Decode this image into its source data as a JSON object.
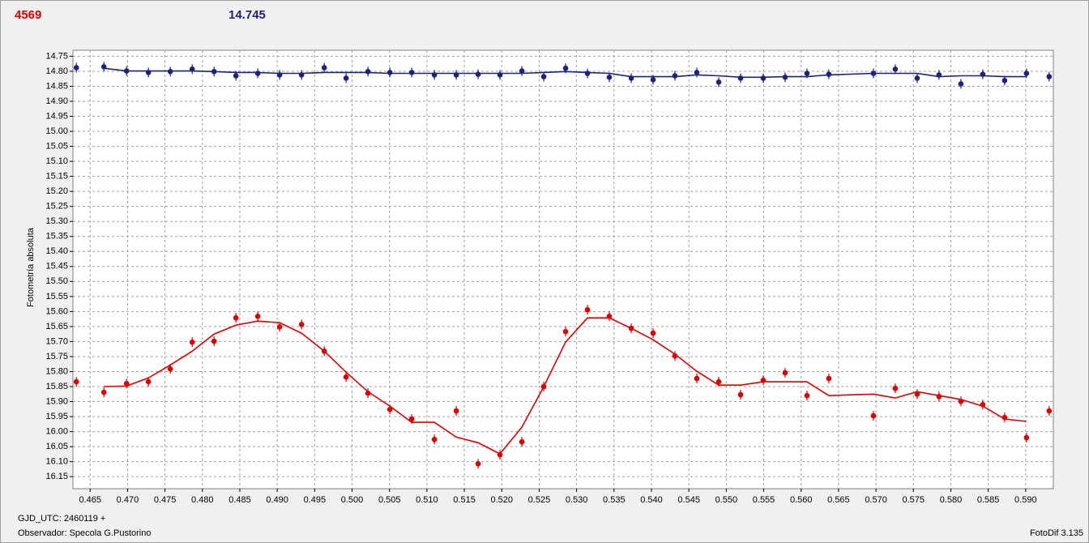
{
  "chart_data": {
    "type": "scatter",
    "header_left": "4569",
    "header_left_color": "#e00000",
    "header_right": "14.745",
    "header_right_color": "#1a237e",
    "y_label": "Fotometría absoluta",
    "footer_1": "GJD_UTC: 2460119 +",
    "footer_2": "Observador: Specola G.Pustorino",
    "footer_right": "FotoDif 3.135",
    "grid": true,
    "xlim": [
      0.4627,
      0.5937
    ],
    "ylim": [
      16.19,
      14.73
    ],
    "xticks": [
      {
        "value": 0.465,
        "label": "0.465"
      },
      {
        "value": 0.47,
        "label": "0.470"
      },
      {
        "value": 0.475,
        "label": "0.475"
      },
      {
        "value": 0.48,
        "label": "0.480"
      },
      {
        "value": 0.485,
        "label": "0.485"
      },
      {
        "value": 0.49,
        "label": "0.490"
      },
      {
        "value": 0.495,
        "label": "0.495"
      },
      {
        "value": 0.5,
        "label": "0.500"
      },
      {
        "value": 0.505,
        "label": "0.505"
      },
      {
        "value": 0.51,
        "label": "0.510"
      },
      {
        "value": 0.515,
        "label": "0.515"
      },
      {
        "value": 0.52,
        "label": "0.520"
      },
      {
        "value": 0.525,
        "label": "0.525"
      },
      {
        "value": 0.53,
        "label": "0.530"
      },
      {
        "value": 0.535,
        "label": "0.535"
      },
      {
        "value": 0.54,
        "label": "0.540"
      },
      {
        "value": 0.545,
        "label": "0.545"
      },
      {
        "value": 0.55,
        "label": "0.550"
      },
      {
        "value": 0.555,
        "label": "0.555"
      },
      {
        "value": 0.56,
        "label": "0.560"
      },
      {
        "value": 0.565,
        "label": "0.565"
      },
      {
        "value": 0.57,
        "label": "0.570"
      },
      {
        "value": 0.575,
        "label": "0.575"
      },
      {
        "value": 0.58,
        "label": "0.580"
      },
      {
        "value": 0.585,
        "label": "0.585"
      },
      {
        "value": 0.59,
        "label": "0.590"
      }
    ],
    "yticks": [
      {
        "value": 14.75,
        "label": "14.75"
      },
      {
        "value": 14.8,
        "label": "14.80"
      },
      {
        "value": 14.85,
        "label": "14.85"
      },
      {
        "value": 14.9,
        "label": "14.90"
      },
      {
        "value": 14.95,
        "label": "14.95"
      },
      {
        "value": 15.0,
        "label": "15.00"
      },
      {
        "value": 15.05,
        "label": "15.05"
      },
      {
        "value": 15.1,
        "label": "15.10"
      },
      {
        "value": 15.15,
        "label": "15.15"
      },
      {
        "value": 15.2,
        "label": "15.20"
      },
      {
        "value": 15.25,
        "label": "15.25"
      },
      {
        "value": 15.3,
        "label": "15.30"
      },
      {
        "value": 15.35,
        "label": "15.35"
      },
      {
        "value": 15.4,
        "label": "15.40"
      },
      {
        "value": 15.45,
        "label": "15.45"
      },
      {
        "value": 15.5,
        "label": "15.50"
      },
      {
        "value": 15.55,
        "label": "15.55"
      },
      {
        "value": 15.6,
        "label": "15.60"
      },
      {
        "value": 15.65,
        "label": "15.65"
      },
      {
        "value": 15.7,
        "label": "15.70"
      },
      {
        "value": 15.75,
        "label": "15.75"
      },
      {
        "value": 15.8,
        "label": "15.80"
      },
      {
        "value": 15.85,
        "label": "15.85"
      },
      {
        "value": 15.9,
        "label": "15.90"
      },
      {
        "value": 15.95,
        "label": "15.95"
      },
      {
        "value": 16.0,
        "label": "16.00"
      },
      {
        "value": 16.05,
        "label": "16.05"
      },
      {
        "value": 16.1,
        "label": "16.10"
      },
      {
        "value": 16.15,
        "label": "16.15"
      }
    ],
    "x": [
      0.46316,
      0.46684,
      0.46987,
      0.47279,
      0.47571,
      0.47864,
      0.48156,
      0.48448,
      0.4874,
      0.49032,
      0.49325,
      0.49628,
      0.4992,
      0.50212,
      0.50505,
      0.50797,
      0.511,
      0.51392,
      0.51684,
      0.51976,
      0.52269,
      0.52561,
      0.52853,
      0.53145,
      0.53437,
      0.5373,
      0.54022,
      0.54314,
      0.54606,
      0.54899,
      0.55191,
      0.55494,
      0.55786,
      0.56078,
      0.5637,
      0.56966,
      0.57258,
      0.5755,
      0.57842,
      0.58135,
      0.58427,
      0.58719,
      0.59011,
      0.59314
    ],
    "series": [
      {
        "style": "points",
        "color": "#1a237e",
        "values": [
          14.788,
          14.785,
          14.799,
          14.804,
          14.801,
          14.793,
          14.801,
          14.815,
          14.807,
          14.812,
          14.812,
          14.788,
          14.823,
          14.801,
          14.804,
          14.804,
          14.812,
          14.812,
          14.81,
          14.812,
          14.799,
          14.818,
          14.79,
          14.807,
          14.82,
          14.823,
          14.828,
          14.815,
          14.804,
          14.836,
          14.823,
          14.823,
          14.82,
          14.807,
          14.81,
          14.807,
          14.793,
          14.823,
          14.812,
          14.842,
          14.81,
          14.831,
          14.807,
          14.818
        ]
      },
      {
        "style": "line",
        "color": "#1a237e",
        "values": [
          null,
          14.79,
          14.799,
          14.799,
          14.799,
          14.799,
          14.801,
          14.804,
          14.804,
          14.807,
          14.807,
          14.804,
          14.804,
          14.804,
          14.807,
          14.807,
          14.807,
          14.807,
          14.807,
          14.807,
          14.807,
          14.804,
          14.801,
          14.804,
          14.807,
          14.818,
          14.818,
          14.818,
          14.812,
          14.815,
          14.82,
          14.82,
          14.818,
          14.818,
          14.812,
          14.807,
          14.807,
          14.807,
          14.818,
          14.815,
          14.815,
          14.818,
          14.818,
          null
        ]
      },
      {
        "style": "points",
        "color": "#e00000",
        "values": [
          15.834,
          15.869,
          15.84,
          15.834,
          15.791,
          15.702,
          15.699,
          15.621,
          15.616,
          15.651,
          15.643,
          15.732,
          15.818,
          15.872,
          15.926,
          15.958,
          16.026,
          15.931,
          16.107,
          16.077,
          16.034,
          15.85,
          15.667,
          15.594,
          15.616,
          15.656,
          15.672,
          15.748,
          15.823,
          15.834,
          15.877,
          15.829,
          15.804,
          15.88,
          15.823,
          15.947,
          15.856,
          15.875,
          15.883,
          15.899,
          15.91,
          15.953,
          16.02,
          15.931
        ]
      },
      {
        "style": "line",
        "color": "#e00000",
        "values": [
          null,
          15.85,
          15.848,
          15.821,
          15.778,
          15.732,
          15.675,
          15.645,
          15.632,
          15.637,
          15.672,
          15.732,
          15.802,
          15.867,
          15.915,
          15.969,
          15.969,
          16.018,
          16.037,
          16.074,
          15.985,
          15.85,
          15.702,
          15.621,
          15.621,
          15.656,
          15.694,
          15.742,
          15.799,
          15.845,
          15.845,
          15.834,
          15.834,
          15.834,
          15.88,
          15.875,
          15.888,
          15.867,
          15.88,
          15.893,
          15.915,
          15.958,
          15.966,
          null
        ]
      }
    ]
  }
}
